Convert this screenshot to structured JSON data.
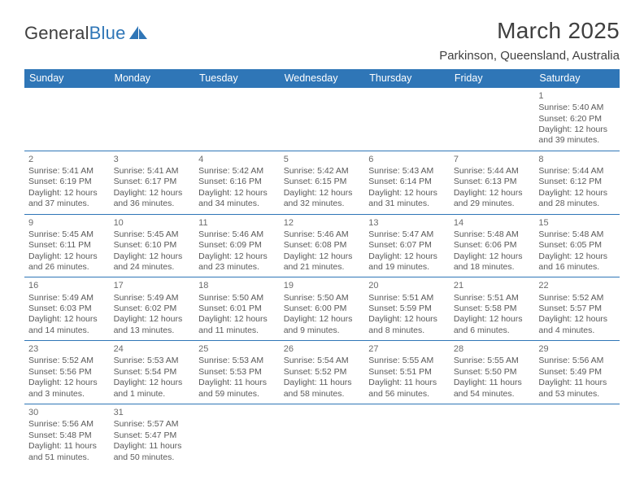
{
  "logo": {
    "text1": "General",
    "text2": "Blue",
    "sailColor": "#2f76b7"
  },
  "title": "March 2025",
  "location": "Parkinson, Queensland, Australia",
  "colors": {
    "headerBg": "#2f76b7",
    "headerText": "#ffffff",
    "rule": "#2f76b7"
  },
  "dayNames": [
    "Sunday",
    "Monday",
    "Tuesday",
    "Wednesday",
    "Thursday",
    "Friday",
    "Saturday"
  ],
  "weeks": [
    [
      null,
      null,
      null,
      null,
      null,
      null,
      {
        "n": "1",
        "sr": "5:40 AM",
        "ss": "6:20 PM",
        "dl": "12 hours and 39 minutes."
      }
    ],
    [
      {
        "n": "2",
        "sr": "5:41 AM",
        "ss": "6:19 PM",
        "dl": "12 hours and 37 minutes."
      },
      {
        "n": "3",
        "sr": "5:41 AM",
        "ss": "6:17 PM",
        "dl": "12 hours and 36 minutes."
      },
      {
        "n": "4",
        "sr": "5:42 AM",
        "ss": "6:16 PM",
        "dl": "12 hours and 34 minutes."
      },
      {
        "n": "5",
        "sr": "5:42 AM",
        "ss": "6:15 PM",
        "dl": "12 hours and 32 minutes."
      },
      {
        "n": "6",
        "sr": "5:43 AM",
        "ss": "6:14 PM",
        "dl": "12 hours and 31 minutes."
      },
      {
        "n": "7",
        "sr": "5:44 AM",
        "ss": "6:13 PM",
        "dl": "12 hours and 29 minutes."
      },
      {
        "n": "8",
        "sr": "5:44 AM",
        "ss": "6:12 PM",
        "dl": "12 hours and 28 minutes."
      }
    ],
    [
      {
        "n": "9",
        "sr": "5:45 AM",
        "ss": "6:11 PM",
        "dl": "12 hours and 26 minutes."
      },
      {
        "n": "10",
        "sr": "5:45 AM",
        "ss": "6:10 PM",
        "dl": "12 hours and 24 minutes."
      },
      {
        "n": "11",
        "sr": "5:46 AM",
        "ss": "6:09 PM",
        "dl": "12 hours and 23 minutes."
      },
      {
        "n": "12",
        "sr": "5:46 AM",
        "ss": "6:08 PM",
        "dl": "12 hours and 21 minutes."
      },
      {
        "n": "13",
        "sr": "5:47 AM",
        "ss": "6:07 PM",
        "dl": "12 hours and 19 minutes."
      },
      {
        "n": "14",
        "sr": "5:48 AM",
        "ss": "6:06 PM",
        "dl": "12 hours and 18 minutes."
      },
      {
        "n": "15",
        "sr": "5:48 AM",
        "ss": "6:05 PM",
        "dl": "12 hours and 16 minutes."
      }
    ],
    [
      {
        "n": "16",
        "sr": "5:49 AM",
        "ss": "6:03 PM",
        "dl": "12 hours and 14 minutes."
      },
      {
        "n": "17",
        "sr": "5:49 AM",
        "ss": "6:02 PM",
        "dl": "12 hours and 13 minutes."
      },
      {
        "n": "18",
        "sr": "5:50 AM",
        "ss": "6:01 PM",
        "dl": "12 hours and 11 minutes."
      },
      {
        "n": "19",
        "sr": "5:50 AM",
        "ss": "6:00 PM",
        "dl": "12 hours and 9 minutes."
      },
      {
        "n": "20",
        "sr": "5:51 AM",
        "ss": "5:59 PM",
        "dl": "12 hours and 8 minutes."
      },
      {
        "n": "21",
        "sr": "5:51 AM",
        "ss": "5:58 PM",
        "dl": "12 hours and 6 minutes."
      },
      {
        "n": "22",
        "sr": "5:52 AM",
        "ss": "5:57 PM",
        "dl": "12 hours and 4 minutes."
      }
    ],
    [
      {
        "n": "23",
        "sr": "5:52 AM",
        "ss": "5:56 PM",
        "dl": "12 hours and 3 minutes."
      },
      {
        "n": "24",
        "sr": "5:53 AM",
        "ss": "5:54 PM",
        "dl": "12 hours and 1 minute."
      },
      {
        "n": "25",
        "sr": "5:53 AM",
        "ss": "5:53 PM",
        "dl": "11 hours and 59 minutes."
      },
      {
        "n": "26",
        "sr": "5:54 AM",
        "ss": "5:52 PM",
        "dl": "11 hours and 58 minutes."
      },
      {
        "n": "27",
        "sr": "5:55 AM",
        "ss": "5:51 PM",
        "dl": "11 hours and 56 minutes."
      },
      {
        "n": "28",
        "sr": "5:55 AM",
        "ss": "5:50 PM",
        "dl": "11 hours and 54 minutes."
      },
      {
        "n": "29",
        "sr": "5:56 AM",
        "ss": "5:49 PM",
        "dl": "11 hours and 53 minutes."
      }
    ],
    [
      {
        "n": "30",
        "sr": "5:56 AM",
        "ss": "5:48 PM",
        "dl": "11 hours and 51 minutes."
      },
      {
        "n": "31",
        "sr": "5:57 AM",
        "ss": "5:47 PM",
        "dl": "11 hours and 50 minutes."
      },
      null,
      null,
      null,
      null,
      null
    ]
  ],
  "labels": {
    "sunrise": "Sunrise: ",
    "sunset": "Sunset: ",
    "daylight": "Daylight: "
  }
}
